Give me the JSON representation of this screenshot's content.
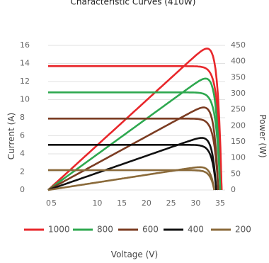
{
  "chart_data": {
    "type": "line",
    "title": "Characteristic Curves (410W)",
    "xlabel": "Voltage (V)",
    "ylabel_left": "Current (A)",
    "ylabel_right": "Power (W)",
    "x_ticks": [
      "0",
      "5",
      "10",
      "15",
      "20",
      "25",
      "30",
      "35"
    ],
    "y_left_ticks": [
      "0",
      "2",
      "4",
      "6",
      "8",
      "10",
      "12",
      "14",
      "16"
    ],
    "y_right_ticks": [
      "0",
      "50",
      "100",
      "150",
      "200",
      "250",
      "300",
      "350",
      "400",
      "450"
    ],
    "xlim": [
      0,
      36
    ],
    "ylim_left": [
      0,
      16
    ],
    "ylim_right": [
      0,
      450
    ],
    "grid": "horizontal",
    "legend_position": "bottom",
    "series": [
      {
        "name": "1000",
        "color": "#e8272b",
        "isc": 13.7,
        "voc": 35.3,
        "vmp": 29.4,
        "pmax": 410
      },
      {
        "name": "800",
        "color": "#2ea84f",
        "isc": 10.8,
        "voc": 35.0,
        "vmp": 29.4,
        "pmax": 326
      },
      {
        "name": "600",
        "color": "#7b3c22",
        "isc": 7.9,
        "voc": 34.6,
        "vmp": 28.6,
        "pmax": 238
      },
      {
        "name": "400",
        "color": "#111111",
        "isc": 5.0,
        "voc": 34.2,
        "vmp": 28.6,
        "pmax": 152
      },
      {
        "name": "200",
        "color": "#8a6a3a",
        "isc": 2.2,
        "voc": 33.8,
        "vmp": 28.0,
        "pmax": 66
      }
    ]
  }
}
